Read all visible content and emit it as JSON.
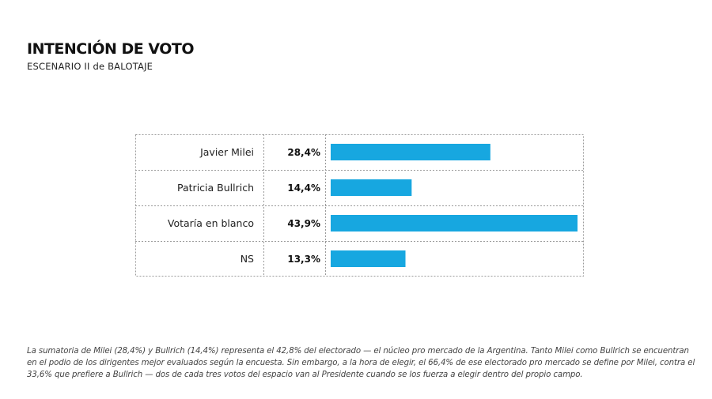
{
  "header": {
    "title": "INTENCIÓN DE VOTO",
    "subtitle": "ESCENARIO II de BALOTAJE"
  },
  "chart_data": {
    "type": "bar",
    "orientation": "horizontal",
    "categories": [
      "Javier Milei",
      "Patricia Bullrich",
      "Votaría en blanco",
      "NS"
    ],
    "values": [
      28.4,
      14.4,
      43.9,
      13.3
    ],
    "value_labels": [
      "28,4%",
      "14,4%",
      "43,9%",
      "13,3%"
    ],
    "unit": "%",
    "xlim": [
      0,
      43.9
    ],
    "bar_color": "#17a7e0",
    "grid": "dotted table borders"
  },
  "footnote": "La sumatoria de Milei (28,4%) y Bullrich (14,4%) representa el 42,8% del electorado — el núcleo pro mercado de la Argentina. Tanto Milei como Bullrich se encuentran en el podio de los dirigentes mejor evaluados según la encuesta. Sin embargo, a la hora de elegir, el 66,4% de ese electorado pro mercado se define por Milei, contra el 33,6% que prefiere a Bullrich — dos de cada tres votos del espacio van al Presidente cuando se los fuerza a elegir dentro del propio campo."
}
